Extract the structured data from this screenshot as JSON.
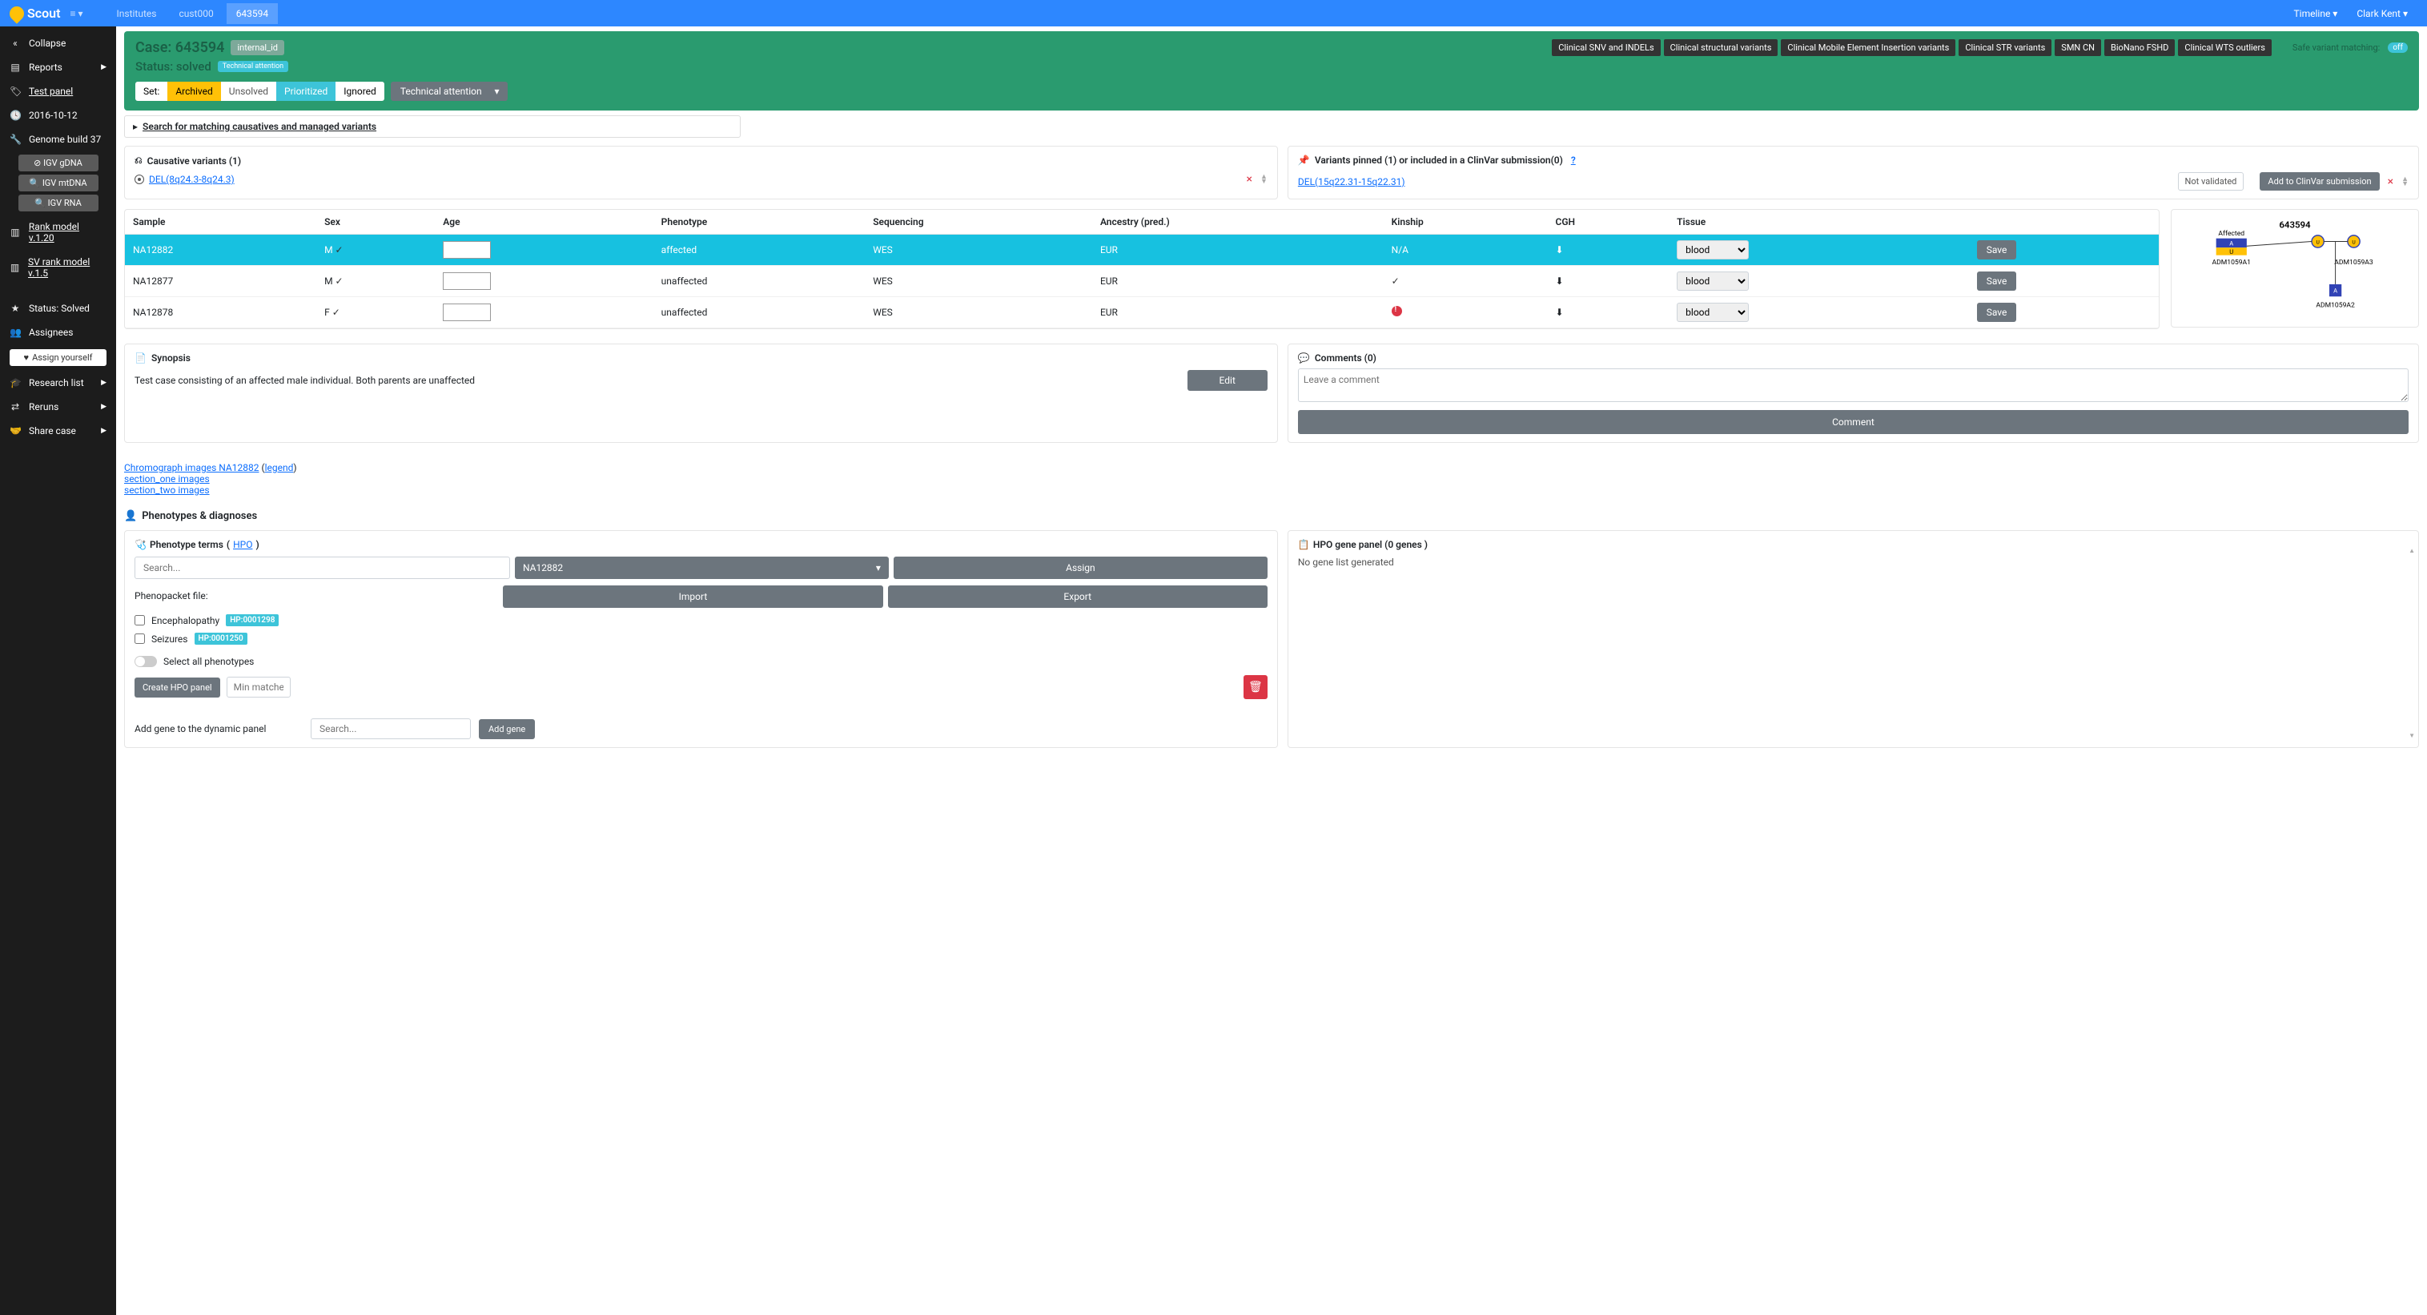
{
  "navbar": {
    "brand": "Scout",
    "items": [
      "Institutes",
      "cust000",
      "643594"
    ],
    "active_index": 2,
    "timeline": "Timeline",
    "user": "Clark Kent"
  },
  "sidebar": {
    "collapse": "Collapse",
    "reports": "Reports",
    "test_panel": "Test panel",
    "date": "2016-10-12",
    "genome": "Genome build 37",
    "igv_gdna": "IGV gDNA",
    "igv_mtdna": "IGV mtDNA",
    "igv_rna": "IGV RNA",
    "rank_model": "Rank model v.1.20",
    "sv_rank": "SV rank model v.1.5",
    "status": "Status: Solved",
    "assignees": "Assignees",
    "assign_yourself": "Assign yourself",
    "research_list": "Research list",
    "reruns": "Reruns",
    "share_case": "Share case"
  },
  "case_header": {
    "case_label": "Case: 643594",
    "internal_id": "internal_id",
    "status_label": "Status: solved",
    "tech_attention": "Technical attention",
    "set": "Set:",
    "archived": "Archived",
    "unsolved": "Unsolved",
    "prioritized": "Prioritized",
    "ignored": "Ignored",
    "dropdown": "Technical attention",
    "pills": [
      "Clinical SNV and INDELs",
      "Clinical structural variants",
      "Clinical Mobile Element Insertion variants",
      "Clinical STR variants",
      "SMN CN",
      "BioNano FSHD",
      "Clinical WTS outliers"
    ],
    "safe_matching": "Safe variant matching:",
    "off": "off"
  },
  "search_causatives": "Search for matching causatives and managed variants",
  "causatives": {
    "title": "Causative variants (1)",
    "variant": "DEL(8q24.3-8q24.3)"
  },
  "pinned": {
    "title": "Variants pinned (1) or included in a ClinVar submission(0)",
    "help": "?",
    "variant": "DEL(15q22.31-15q22.31)",
    "not_validated": "Not validated",
    "clinvar_btn": "Add to ClinVar submission"
  },
  "samples": {
    "columns": [
      "Sample",
      "Sex",
      "Age",
      "Phenotype",
      "Sequencing",
      "Ancestry (pred.)",
      "Kinship",
      "CGH",
      "Tissue"
    ],
    "rows": [
      {
        "sample": "NA12882",
        "sex": "M",
        "phenotype": "affected",
        "sequencing": "WES",
        "ancestry": "EUR",
        "kinship": "N/A",
        "kinship_err": false,
        "tissue": "blood",
        "highlight": true
      },
      {
        "sample": "NA12877",
        "sex": "M",
        "phenotype": "unaffected",
        "sequencing": "WES",
        "ancestry": "EUR",
        "kinship": "check",
        "kinship_err": false,
        "tissue": "blood",
        "highlight": false
      },
      {
        "sample": "NA12878",
        "sex": "F",
        "phenotype": "unaffected",
        "sequencing": "WES",
        "ancestry": "EUR",
        "kinship": "",
        "kinship_err": true,
        "tissue": "blood",
        "highlight": false
      }
    ],
    "save": "Save"
  },
  "pedigree": {
    "title": "643594",
    "affected_label": "Affected",
    "left_id": "ADM1059A1",
    "right_id": "ADM1059A3",
    "bottom_id": "ADM1059A2",
    "colors": {
      "affected_bg": "#3143b5",
      "affected_text": "#fff",
      "carrier_bg": "#ffc107",
      "unaffected_stroke": "#3143b5"
    }
  },
  "synopsis": {
    "title": "Synopsis",
    "text": "Test case consisting of an affected male individual. Both parents are unaffected",
    "edit": "Edit"
  },
  "comments": {
    "title": "Comments (0)",
    "placeholder": "Leave a comment",
    "button": "Comment"
  },
  "links": {
    "chromo": "Chromograph images NA12882",
    "legend": "legend",
    "section_one": "section_one images",
    "section_two": "section_two images"
  },
  "pheno_diag": "Phenotypes & diagnoses",
  "pheno_terms": {
    "title": "Phenotype terms",
    "hpo": "HPO",
    "search_placeholder": "Search...",
    "individual": "NA12882",
    "assign": "Assign",
    "phenopacket": "Phenopacket file:",
    "import": "Import",
    "export": "Export",
    "items": [
      {
        "label": "Encephalopathy",
        "badge": "HP:0001298"
      },
      {
        "label": "Seizures",
        "badge": "HP:0001250"
      }
    ],
    "select_all": "Select all phenotypes",
    "create_hpo": "Create HPO panel",
    "min_placeholder": "Min matches",
    "add_gene_label": "Add gene to the dynamic panel",
    "gene_search_placeholder": "Search...",
    "add_gene": "Add gene"
  },
  "hpo_panel": {
    "title": "HPO gene panel (0 genes )",
    "no_genes": "No gene list generated"
  }
}
